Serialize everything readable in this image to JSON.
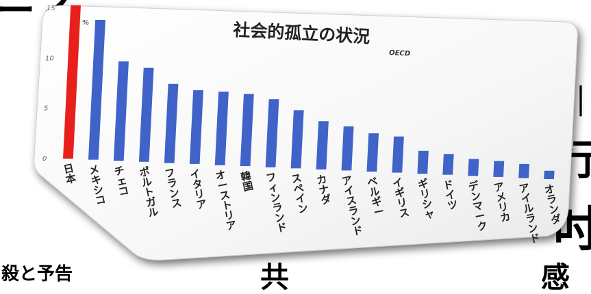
{
  "background_fragments": {
    "top": "ニノ",
    "bottom_left": "殺と予告",
    "bottom_mid": "共",
    "bottom_right": "感",
    "right_1": "｜",
    "right_2": "行",
    "right_3": "吋"
  },
  "chart_data": {
    "type": "bar",
    "title": "社会的孤立の状況",
    "source": "OECD",
    "ylabel": "%",
    "ylim": [
      0,
      15
    ],
    "yticks": [
      "0",
      "5",
      "10",
      "15"
    ],
    "categories": [
      "日本",
      "メキシコ",
      "チェコ",
      "ポルトガル",
      "フランス",
      "イタリア",
      "オーストリア",
      "韓国",
      "フィンランド",
      "スペイン",
      "カナダ",
      "アイスランド",
      "ベルギー",
      "イギリス",
      "ギリシャ",
      "ドイツ",
      "デンマーク",
      "アメリカ",
      "アイルランド",
      "オランダ"
    ],
    "values": [
      15.3,
      14.0,
      10.0,
      9.5,
      8.0,
      7.5,
      7.5,
      7.4,
      7.0,
      6.0,
      5.0,
      4.6,
      4.0,
      3.8,
      2.4,
      2.2,
      1.8,
      1.7,
      1.5,
      0.9
    ],
    "colors": {
      "highlight": "#e8201c",
      "default": "#3f63c8"
    },
    "highlight_index": 0,
    "grid": false,
    "legend": "none"
  }
}
